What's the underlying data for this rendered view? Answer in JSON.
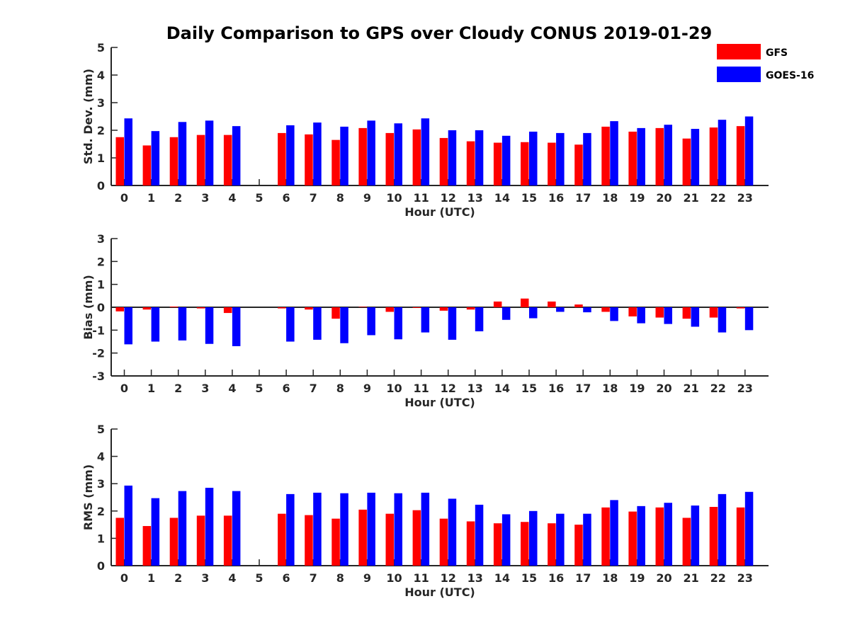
{
  "title": "Daily Comparison to GPS over Cloudy CONUS 2019-01-29",
  "legend": {
    "placement": "top-right",
    "items": [
      {
        "label": "GFS",
        "color": "#ff0000"
      },
      {
        "label": "GOES-16",
        "color": "#0000ff"
      }
    ]
  },
  "chart_data": [
    {
      "type": "bar",
      "xlabel": "Hour (UTC)",
      "ylabel": "Std. Dev. (mm)",
      "ylim": [
        0,
        5
      ],
      "yticks": [
        0,
        1,
        2,
        3,
        4,
        5
      ],
      "categories": [
        "0",
        "1",
        "2",
        "3",
        "4",
        "5",
        "6",
        "7",
        "8",
        "9",
        "10",
        "11",
        "12",
        "13",
        "14",
        "15",
        "16",
        "17",
        "18",
        "19",
        "20",
        "21",
        "22",
        "23"
      ],
      "series": [
        {
          "name": "GFS",
          "color": "#ff0000",
          "values": [
            1.75,
            1.45,
            1.75,
            1.83,
            1.83,
            null,
            1.9,
            1.85,
            1.65,
            2.08,
            1.9,
            2.03,
            1.72,
            1.6,
            1.55,
            1.57,
            1.55,
            1.48,
            2.13,
            1.95,
            2.08,
            1.7,
            2.1,
            2.15
          ]
        },
        {
          "name": "GOES-16",
          "color": "#0000ff",
          "values": [
            2.43,
            1.97,
            2.3,
            2.35,
            2.15,
            null,
            2.18,
            2.28,
            2.13,
            2.35,
            2.25,
            2.43,
            2.0,
            2.0,
            1.8,
            1.95,
            1.9,
            1.9,
            2.33,
            2.08,
            2.2,
            2.05,
            2.38,
            2.5
          ]
        }
      ]
    },
    {
      "type": "bar",
      "xlabel": "Hour (UTC)",
      "ylabel": "Bias (mm)",
      "ylim": [
        -3,
        3
      ],
      "yticks": [
        -3,
        -2,
        -1,
        0,
        1,
        2,
        3
      ],
      "zero_line": true,
      "categories": [
        "0",
        "1",
        "2",
        "3",
        "4",
        "5",
        "6",
        "7",
        "8",
        "9",
        "10",
        "11",
        "12",
        "13",
        "14",
        "15",
        "16",
        "17",
        "18",
        "19",
        "20",
        "21",
        "22",
        "23"
      ],
      "series": [
        {
          "name": "GFS",
          "color": "#ff0000",
          "values": [
            -0.18,
            -0.1,
            0.03,
            -0.05,
            -0.25,
            null,
            -0.05,
            -0.1,
            -0.5,
            0.02,
            -0.2,
            -0.03,
            -0.15,
            -0.1,
            0.25,
            0.38,
            0.25,
            0.12,
            -0.2,
            -0.4,
            -0.45,
            -0.5,
            -0.45,
            -0.05
          ]
        },
        {
          "name": "GOES-16",
          "color": "#0000ff",
          "values": [
            -1.62,
            -1.5,
            -1.45,
            -1.6,
            -1.7,
            null,
            -1.5,
            -1.42,
            -1.57,
            -1.22,
            -1.4,
            -1.1,
            -1.42,
            -1.05,
            -0.55,
            -0.48,
            -0.2,
            -0.22,
            -0.6,
            -0.7,
            -0.73,
            -0.85,
            -1.1,
            -1.0
          ]
        }
      ]
    },
    {
      "type": "bar",
      "xlabel": "Hour (UTC)",
      "ylabel": "RMS (mm)",
      "ylim": [
        0,
        5
      ],
      "yticks": [
        0,
        1,
        2,
        3,
        4,
        5
      ],
      "categories": [
        "0",
        "1",
        "2",
        "3",
        "4",
        "5",
        "6",
        "7",
        "8",
        "9",
        "10",
        "11",
        "12",
        "13",
        "14",
        "15",
        "16",
        "17",
        "18",
        "19",
        "20",
        "21",
        "22",
        "23"
      ],
      "series": [
        {
          "name": "GFS",
          "color": "#ff0000",
          "values": [
            1.75,
            1.45,
            1.75,
            1.83,
            1.83,
            null,
            1.9,
            1.85,
            1.72,
            2.05,
            1.9,
            2.03,
            1.72,
            1.62,
            1.55,
            1.6,
            1.55,
            1.5,
            2.13,
            1.98,
            2.13,
            1.75,
            2.15,
            2.13
          ]
        },
        {
          "name": "GOES-16",
          "color": "#0000ff",
          "values": [
            2.93,
            2.47,
            2.73,
            2.85,
            2.73,
            null,
            2.62,
            2.67,
            2.65,
            2.67,
            2.65,
            2.67,
            2.45,
            2.23,
            1.88,
            2.0,
            1.9,
            1.9,
            2.4,
            2.18,
            2.3,
            2.2,
            2.62,
            2.7
          ]
        }
      ]
    }
  ]
}
